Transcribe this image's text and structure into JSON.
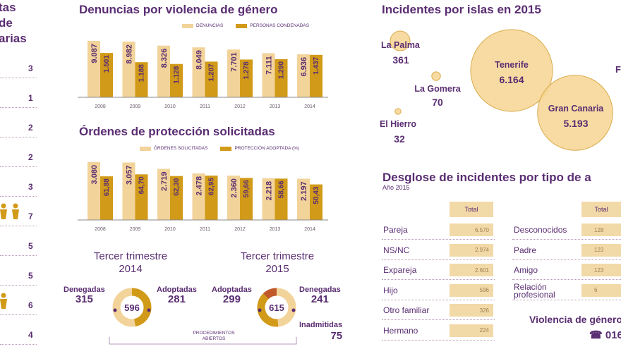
{
  "left_panel": {
    "title_lines": [
      "tas",
      "de",
      "arias"
    ],
    "counts": [
      "3",
      "1",
      "2",
      "2",
      "3",
      "7",
      "5",
      "5",
      "6",
      "4"
    ]
  },
  "colors": {
    "light": "#f2d39a",
    "dark": "#d19a18",
    "purple": "#5a2d72",
    "circle": "#f7d592",
    "circle_edge": "#d9ab4a"
  },
  "chart_data": [
    {
      "type": "bar",
      "title": "Denuncias por violencia de género",
      "categories": [
        "2008",
        "2009",
        "2010",
        "2011",
        "2012",
        "2013",
        "2014"
      ],
      "series": [
        {
          "name": "DENUNCIAS",
          "values": [
            9087,
            8982,
            8326,
            8049,
            7701,
            7111,
            6936
          ],
          "labels": [
            "9.087",
            "8.982",
            "8.326",
            "8.049",
            "7.701",
            "7.111",
            "6.936"
          ]
        },
        {
          "name": "PERSONAS CONDENADAS",
          "values": [
            1501,
            1188,
            1128,
            1207,
            1278,
            1290,
            1437
          ],
          "labels": [
            "1.501",
            "1.188",
            "1.128",
            "1.207",
            "1.278",
            "1.290",
            "1.437"
          ]
        }
      ]
    },
    {
      "type": "bar",
      "title": "Órdenes de protección solicitadas",
      "categories": [
        "2008",
        "2009",
        "2010",
        "2011",
        "2012",
        "2013",
        "2014"
      ],
      "series": [
        {
          "name": "ÓRDENES SOLICITADAS",
          "values": [
            3080,
            3057,
            2719,
            2478,
            2360,
            2218,
            2197
          ],
          "labels": [
            "3.080",
            "3.057",
            "2.719",
            "2.478",
            "2.360",
            "2.218",
            "2.197"
          ]
        },
        {
          "name": "PROTECCIÓN ADOPTADA (%)",
          "values": [
            61.88,
            64.7,
            62.3,
            62.95,
            59.66,
            58.66,
            50.43
          ],
          "labels": [
            "61,88",
            "64,70",
            "62,30",
            "62,95",
            "59,66",
            "58,66",
            "50,43"
          ]
        }
      ]
    },
    {
      "type": "pie",
      "title": "Tercer trimestre 2014",
      "title_lines": [
        "Tercer trimestre",
        "2014"
      ],
      "center": "596",
      "slices": [
        {
          "name": "Adoptadas",
          "value": 281,
          "label": "281"
        },
        {
          "name": "Denegadas",
          "value": 315,
          "label": "315"
        }
      ]
    },
    {
      "type": "pie",
      "title": "Tercer trimestre 2015",
      "title_lines": [
        "Tercer trimestre",
        "2015"
      ],
      "center": "615",
      "slices": [
        {
          "name": "Adoptadas",
          "value": 299,
          "label": "299"
        },
        {
          "name": "Denegadas",
          "value": 241,
          "label": "241"
        },
        {
          "name": "Inadmitidas",
          "value": 75,
          "label": "75"
        }
      ]
    },
    {
      "type": "scatter",
      "title": "Incidentes por islas en 2015",
      "points": [
        {
          "name": "La Palma",
          "value": 361,
          "label": "361"
        },
        {
          "name": "La Gomera",
          "value": 70,
          "label": "70"
        },
        {
          "name": "El Hierro",
          "value": 32,
          "label": "32"
        },
        {
          "name": "Tenerife",
          "value": 6164,
          "label": "6.164"
        },
        {
          "name": "Gran Canaria",
          "value": 5193,
          "label": "5.193"
        }
      ],
      "cut_label": "F"
    },
    {
      "type": "table",
      "title": "Desglose de incidentes por tipo de a",
      "subtitle": "Año 2015",
      "header": "Total",
      "rows": [
        {
          "label": "Pareja",
          "value": "6.570"
        },
        {
          "label": "NS/NC",
          "value": "2.974"
        },
        {
          "label": "Expareja",
          "value": "2.601"
        },
        {
          "label": "Hijo",
          "value": "596"
        },
        {
          "label": "Otro familiar",
          "value": "326"
        },
        {
          "label": "Hermano",
          "value": "224"
        }
      ],
      "rows2": [
        {
          "label": "Desconocidos",
          "value": "128"
        },
        {
          "label": "Padre",
          "value": "123"
        },
        {
          "label": "Amigo",
          "value": "123"
        },
        {
          "label": "Relación profesional",
          "label_lines": [
            "Relación",
            "profesional"
          ],
          "value": "6"
        }
      ]
    }
  ],
  "procedimientos": [
    "PROCEDIMIENTOS",
    "ABIERTOS"
  ],
  "hotline": {
    "title": "Violencia de género",
    "number": "016"
  }
}
